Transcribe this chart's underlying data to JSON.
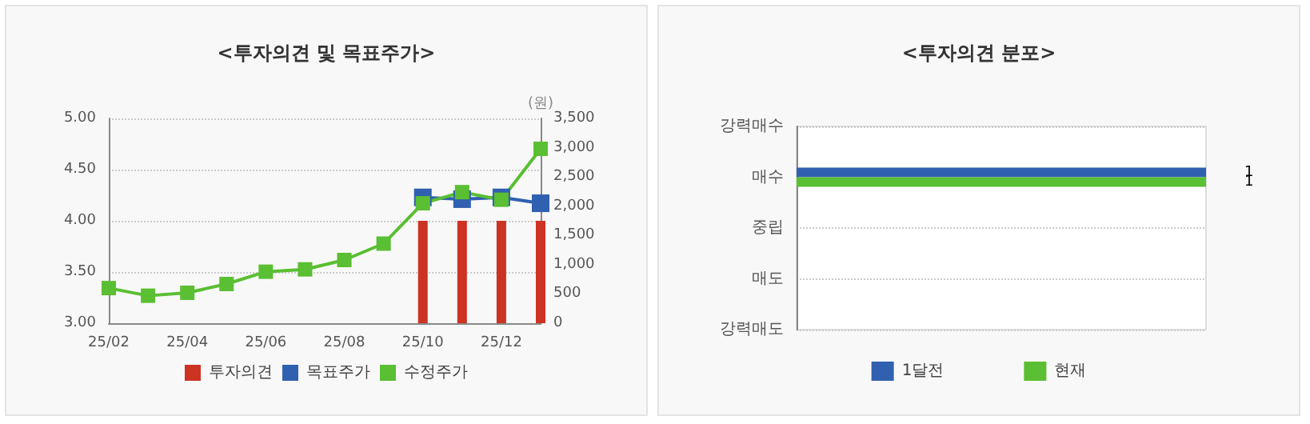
{
  "chart_data": [
    {
      "type": "bar",
      "title": "<투자의견 및 목표주가>",
      "categories": [
        "25/02",
        null,
        "25/04",
        null,
        "25/06",
        null,
        "25/08",
        null,
        "25/10",
        null,
        "25/12",
        null
      ],
      "series": [
        {
          "name": "투자의견",
          "type": "bar",
          "color": "#cc3322",
          "values": [
            null,
            null,
            null,
            null,
            null,
            null,
            null,
            null,
            4,
            4,
            4,
            4
          ]
        },
        {
          "name": "목표주가",
          "type": "line",
          "axis": "y2",
          "color": "#3060b0",
          "values": [
            null,
            null,
            null,
            null,
            null,
            null,
            null,
            null,
            2150,
            2120,
            2150,
            2050
          ]
        },
        {
          "name": "수정주가",
          "type": "line",
          "axis": "y2",
          "color": "#5abf32",
          "values": [
            600,
            470,
            520,
            670,
            880,
            920,
            1080,
            1360,
            2050,
            2240,
            2110,
            2980
          ]
        }
      ],
      "ylim": [
        3,
        5
      ],
      "yticks": [
        {
          "value": 3,
          "label": "3.00"
        },
        {
          "value": 3.5,
          "label": "3.50"
        },
        {
          "value": 4,
          "label": "4.00"
        },
        {
          "value": 4.5,
          "label": "4.50"
        },
        {
          "value": 5,
          "label": "5.00"
        }
      ],
      "y2lim": [
        0,
        3500
      ],
      "y2ticks": [
        0,
        500,
        {
          "value": 1000,
          "label": "1,000"
        },
        {
          "value": 1500,
          "label": "1,500"
        },
        {
          "value": 2000,
          "label": "2,000"
        },
        {
          "value": 2500,
          "label": "2,500"
        },
        {
          "value": 3000,
          "label": "3,000"
        },
        {
          "value": 3500,
          "label": "3,500"
        }
      ],
      "y2label": "(원)",
      "grid": "y",
      "legend": "bottom",
      "marker": "square"
    },
    {
      "type": "bar",
      "orientation": "horizontal",
      "title": "<투자의견 분포>",
      "categories": [
        "강력매수",
        "매수",
        "중립",
        "매도",
        "강력매도"
      ],
      "series": [
        {
          "name": "1달전",
          "color": "#3060b0",
          "values": [
            null,
            1,
            null,
            null,
            null
          ]
        },
        {
          "name": "현재",
          "color": "#5abf32",
          "values": [
            null,
            1,
            null,
            null,
            null
          ]
        }
      ],
      "data_labels": true,
      "grid": "y",
      "legend": "bottom",
      "tick_labels": "y"
    }
  ]
}
